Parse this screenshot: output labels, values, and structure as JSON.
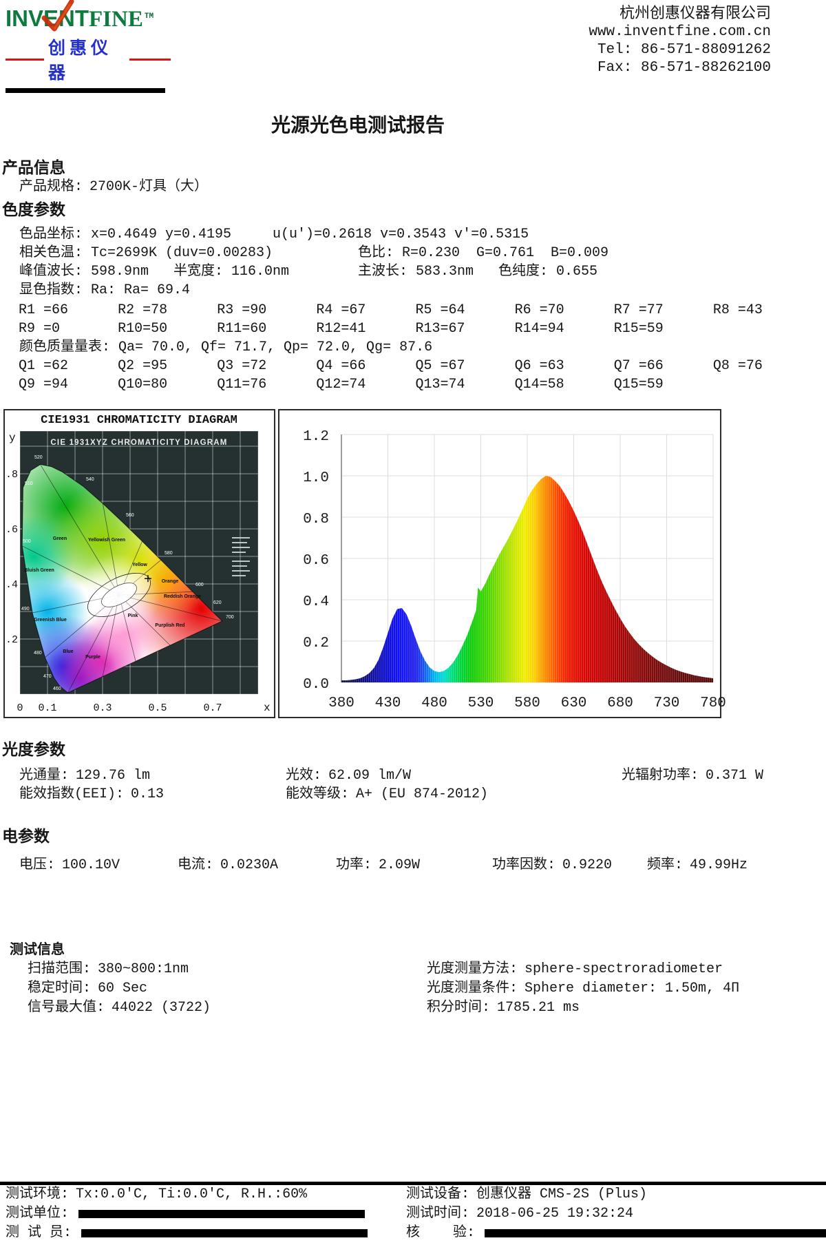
{
  "header": {
    "logo": {
      "brand_part1": "INVENT",
      "brand_part2": "FINE",
      "tm": "TM",
      "subtitle_cn": "创惠仪器",
      "brand_color": "#0d7a3e",
      "check_color": "#cf2b05",
      "cn_color": "#2530cc"
    },
    "company": {
      "name": "杭州创惠仪器有限公司",
      "website": "www.inventfine.com.cn",
      "tel": "Tel: 86-571-88091262",
      "fax": "Fax: 86-571-88262100"
    }
  },
  "title": "光源光色电测试报告",
  "product": {
    "section_title": "产品信息",
    "spec_label": "产品规格:",
    "spec_value": "2700K-灯具（大）"
  },
  "chroma": {
    "section_title": "色度参数",
    "line1": "色品坐标: x=0.4649 y=0.4195     u(u')=0.2618 v=0.3543 v'=0.5315",
    "line2_left": "相关色温: Tc=2699K (duv=0.00283)",
    "line2_right": "色比: R=0.230  G=0.761  B=0.009",
    "line3_left": "峰值波长: 598.9nm   半宽度: 116.0nm",
    "line3_right": "主波长: 583.3nm   色纯度: 0.655",
    "line4": "显色指数: Ra: Ra= 69.4",
    "cri_row1": [
      "R1 =66",
      "R2 =78",
      "R3 =90",
      "R4 =67",
      "R5 =64",
      "R6 =70",
      "R7 =77",
      "R8 =43"
    ],
    "cri_row2": [
      "R9 =0",
      "R10=50",
      "R11=60",
      "R12=41",
      "R13=67",
      "R14=94",
      "R15=59"
    ],
    "cqs_line": "颜色质量量表: Qa= 70.0, Qf= 71.7, Qp= 72.0, Qg= 87.6",
    "cqs_row1": [
      "Q1 =62",
      "Q2 =95",
      "Q3 =72",
      "Q4 =66",
      "Q5 =67",
      "Q6 =63",
      "Q7 =66",
      "Q8 =76"
    ],
    "cqs_row2": [
      "Q9 =94",
      "Q10=80",
      "Q11=76",
      "Q12=74",
      "Q13=74",
      "Q14=58",
      "Q15=59"
    ]
  },
  "photometric": {
    "section_title": "光度参数",
    "row1": [
      {
        "label": "光通量:",
        "value": "129.76 lm"
      },
      {
        "label": "光效:",
        "value": "62.09 lm/W"
      },
      {
        "label": "光辐射功率:",
        "value": "0.371 W"
      }
    ],
    "row2": [
      {
        "label": "能效指数(EEI):",
        "value": "0.13"
      },
      {
        "label": "能效等级:",
        "value": "A+ (EU 874-2012)"
      }
    ]
  },
  "electrical": {
    "section_title": "电参数",
    "items": [
      {
        "label": "电压:",
        "value": "100.10V"
      },
      {
        "label": "电流:",
        "value": "0.0230A"
      },
      {
        "label": "功率:",
        "value": "2.09W"
      },
      {
        "label": "功率因数:",
        "value": "0.9220"
      },
      {
        "label": "频率:",
        "value": "49.99Hz"
      }
    ]
  },
  "test_info": {
    "section_title": "测试信息",
    "left": [
      {
        "label": "扫描范围:",
        "value": "380~800:1nm"
      },
      {
        "label": "稳定时间:",
        "value": "60 Sec"
      },
      {
        "label": "信号最大值:",
        "value": "44022 (3722)"
      }
    ],
    "right": [
      {
        "label": "光度测量方法:",
        "value": "sphere-spectroradiometer"
      },
      {
        "label": "光度测量条件:",
        "value": "Sphere diameter: 1.50m, 4Π"
      },
      {
        "label": "积分时间:",
        "value": "1785.21 ms"
      }
    ]
  },
  "footer": {
    "rows": [
      {
        "left_label": "测试环境:",
        "left_value": "Tx:0.0'C, Ti:0.0'C, R.H.:60%",
        "right_label": "测试设备:",
        "right_value": "创惠仪器 CMS-2S (Plus)"
      },
      {
        "left_label": "测试单位:",
        "left_value": "",
        "right_label": "测试时间:",
        "right_value": "2018-06-25 19:32:24"
      },
      {
        "left_label": "测 试 员:",
        "left_value": "",
        "right_label": "核    验:",
        "right_value": ""
      }
    ]
  },
  "chart_data": [
    {
      "type": "area",
      "name": "relative spectral power distribution",
      "xlabel": "",
      "ylabel": "",
      "xlim": [
        380,
        780
      ],
      "ylim": [
        0,
        1.2
      ],
      "xticks": [
        380,
        430,
        480,
        530,
        580,
        630,
        680,
        730,
        780
      ],
      "yticks": [
        0.0,
        0.2,
        0.4,
        0.6,
        0.8,
        1.0,
        1.2
      ],
      "grid": true,
      "x": [
        380,
        385,
        390,
        395,
        400,
        405,
        410,
        415,
        420,
        425,
        430,
        435,
        440,
        445,
        450,
        455,
        460,
        465,
        470,
        475,
        480,
        485,
        490,
        495,
        500,
        505,
        510,
        515,
        520,
        525,
        527,
        530,
        535,
        540,
        545,
        550,
        555,
        560,
        565,
        570,
        575,
        580,
        585,
        590,
        595,
        600,
        605,
        610,
        615,
        620,
        625,
        630,
        635,
        640,
        645,
        650,
        655,
        660,
        665,
        670,
        675,
        680,
        685,
        690,
        695,
        700,
        705,
        710,
        715,
        720,
        725,
        730,
        735,
        740,
        745,
        750,
        755,
        760,
        765,
        770,
        775,
        780
      ],
      "values": [
        0.01,
        0.01,
        0.012,
        0.015,
        0.02,
        0.03,
        0.045,
        0.07,
        0.11,
        0.17,
        0.24,
        0.31,
        0.355,
        0.36,
        0.33,
        0.275,
        0.21,
        0.15,
        0.105,
        0.072,
        0.055,
        0.05,
        0.055,
        0.07,
        0.095,
        0.13,
        0.175,
        0.225,
        0.285,
        0.35,
        0.46,
        0.44,
        0.48,
        0.53,
        0.575,
        0.62,
        0.66,
        0.7,
        0.745,
        0.79,
        0.84,
        0.89,
        0.93,
        0.96,
        0.985,
        1.0,
        0.995,
        0.975,
        0.95,
        0.915,
        0.875,
        0.83,
        0.78,
        0.725,
        0.665,
        0.605,
        0.545,
        0.49,
        0.44,
        0.395,
        0.35,
        0.31,
        0.272,
        0.24,
        0.21,
        0.185,
        0.162,
        0.142,
        0.124,
        0.108,
        0.094,
        0.082,
        0.071,
        0.061,
        0.053,
        0.046,
        0.04,
        0.034,
        0.03,
        0.026,
        0.023,
        0.02
      ],
      "peak_wavelength_nm": 598.9,
      "color_stops": [
        {
          "at": 380,
          "color": "#15153a"
        },
        {
          "at": 410,
          "color": "#101090"
        },
        {
          "at": 430,
          "color": "#0d0dd8"
        },
        {
          "at": 445,
          "color": "#1414ff"
        },
        {
          "at": 460,
          "color": "#2020f0"
        },
        {
          "at": 470,
          "color": "#1560f0"
        },
        {
          "at": 480,
          "color": "#00b4f0"
        },
        {
          "at": 490,
          "color": "#00dcd2"
        },
        {
          "at": 500,
          "color": "#00dc78"
        },
        {
          "at": 510,
          "color": "#00d434"
        },
        {
          "at": 520,
          "color": "#10cc08"
        },
        {
          "at": 535,
          "color": "#3fd400"
        },
        {
          "at": 550,
          "color": "#84dc00"
        },
        {
          "at": 565,
          "color": "#c4e400"
        },
        {
          "at": 577,
          "color": "#eeee00"
        },
        {
          "at": 588,
          "color": "#ffcc00"
        },
        {
          "at": 596,
          "color": "#ff9c00"
        },
        {
          "at": 605,
          "color": "#ff7000"
        },
        {
          "at": 613,
          "color": "#ff4400"
        },
        {
          "at": 622,
          "color": "#f32000"
        },
        {
          "at": 632,
          "color": "#e30e00"
        },
        {
          "at": 645,
          "color": "#d40404"
        },
        {
          "at": 660,
          "color": "#c40202"
        },
        {
          "at": 680,
          "color": "#a90606"
        },
        {
          "at": 700,
          "color": "#8e0909"
        },
        {
          "at": 730,
          "color": "#700b0b"
        },
        {
          "at": 780,
          "color": "#540d0d"
        }
      ]
    },
    {
      "type": "scatter",
      "name": "CIE1931 chromaticity diagram",
      "title": "CIE1931 CHROMATICITY DIAGRAM",
      "inner_title": "CIE 1931XYZ CHROMATICITY DIAGRAM",
      "xlabel": "x",
      "ylabel": "y",
      "point": {
        "x": 0.4649,
        "y": 0.4195
      },
      "yticks": [
        {
          "t": ".8",
          "v": 0.8
        },
        {
          "t": ".6",
          "v": 0.6
        },
        {
          "t": ".4",
          "v": 0.4
        },
        {
          "t": ".2",
          "v": 0.2
        }
      ],
      "xticks": [
        {
          "t": "0",
          "v": 0
        },
        {
          "t": "0.1",
          "v": 0.1
        },
        {
          "t": "0.3",
          "v": 0.3
        },
        {
          "t": "0.5",
          "v": 0.5
        },
        {
          "t": "0.7",
          "v": 0.7
        }
      ],
      "wavelength_labels": [
        {
          "t": "460",
          "x": 70,
          "y": 406
        },
        {
          "t": "470",
          "x": 56,
          "y": 388
        },
        {
          "t": "480",
          "x": 42,
          "y": 354
        },
        {
          "t": "490",
          "x": 24,
          "y": 290
        },
        {
          "t": "500",
          "x": 26,
          "y": 192
        },
        {
          "t": "510",
          "x": 29,
          "y": 108
        },
        {
          "t": "520",
          "x": 43,
          "y": 70
        },
        {
          "t": "540",
          "x": 118,
          "y": 102
        },
        {
          "t": "560",
          "x": 176,
          "y": 154
        },
        {
          "t": "580",
          "x": 232,
          "y": 209
        },
        {
          "t": "600",
          "x": 277,
          "y": 255
        },
        {
          "t": "620",
          "x": 303,
          "y": 281
        },
        {
          "t": "700",
          "x": 321,
          "y": 302
        }
      ],
      "region_labels": [
        {
          "t": "Green",
          "x": 80,
          "y": 188
        },
        {
          "t": "Yellowish Green",
          "x": 148,
          "y": 190
        },
        {
          "t": "Yellow",
          "x": 196,
          "y": 226
        },
        {
          "t": "Orange",
          "x": 240,
          "y": 250
        },
        {
          "t": "Reddish Orange",
          "x": 258,
          "y": 272
        },
        {
          "t": "Pink",
          "x": 186,
          "y": 300
        },
        {
          "t": "Purplish Red",
          "x": 240,
          "y": 314
        },
        {
          "t": "Purple",
          "x": 128,
          "y": 360
        },
        {
          "t": "Blue",
          "x": 92,
          "y": 352
        },
        {
          "t": "Greenish Blue",
          "x": 66,
          "y": 306
        },
        {
          "t": "Bluish Green",
          "x": 50,
          "y": 234
        }
      ]
    }
  ]
}
